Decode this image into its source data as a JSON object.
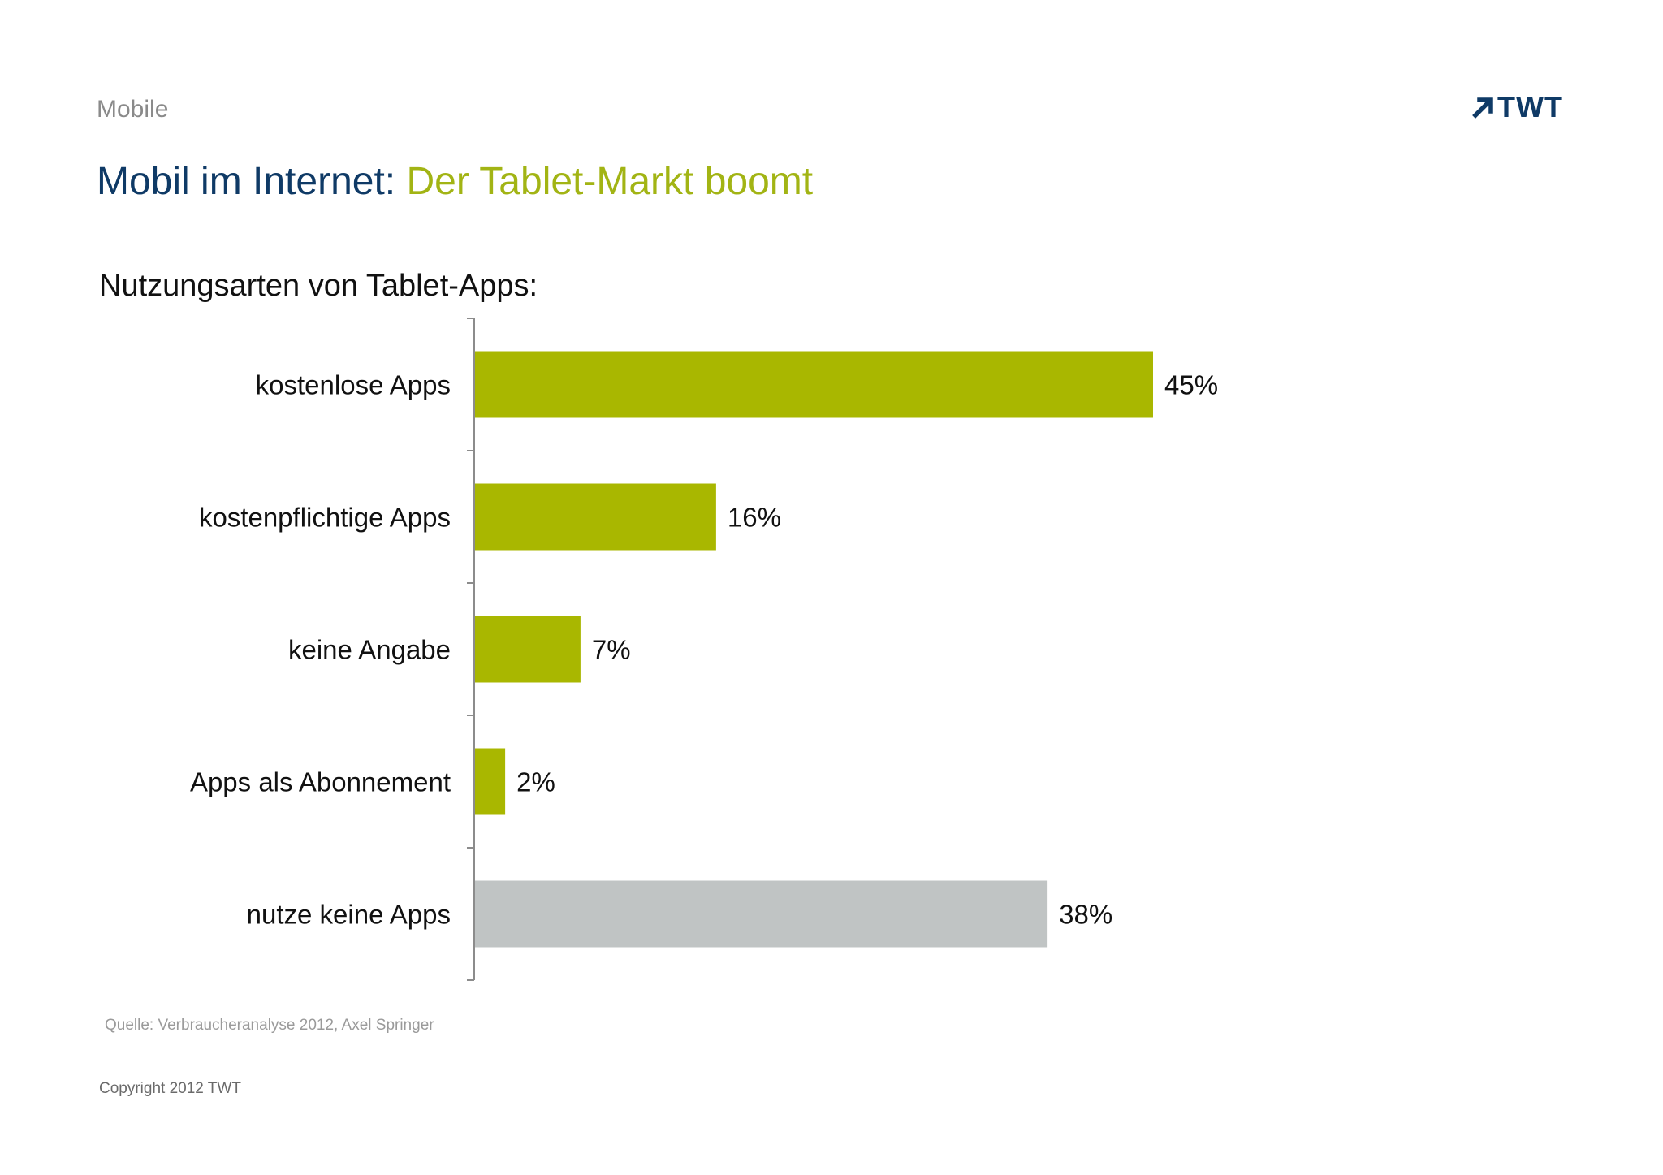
{
  "header": {
    "section_label": "Mobile",
    "logo_text": "TWT",
    "logo_icon": "arrow-up-right-icon",
    "title_main": "Mobil im Internet:",
    "title_accent": "Der Tablet-Markt boomt"
  },
  "colors": {
    "brand_blue": "#0f3a66",
    "accent_green": "#a9b700",
    "neutral_gray": "#c0c4c4"
  },
  "chart_data": {
    "type": "bar",
    "orientation": "horizontal",
    "title": "Nutzungsarten von Tablet-Apps:",
    "xlabel": "",
    "ylabel": "",
    "unit": "%",
    "categories": [
      "kostenlose Apps",
      "kostenpflichtige Apps",
      "keine Angabe",
      "Apps als Abonnement",
      "nutze keine Apps"
    ],
    "values": [
      45,
      16,
      7,
      2,
      38
    ],
    "value_labels": [
      "45%",
      "16%",
      "7%",
      "2%",
      "38%"
    ],
    "bar_colors": [
      "#a9b700",
      "#a9b700",
      "#a9b700",
      "#a9b700",
      "#c0c4c4"
    ],
    "grid": false,
    "legend": "none"
  },
  "footer": {
    "source": "Quelle: Verbraucheranalyse 2012,  Axel Springer",
    "copyright": "Copyright 2012 TWT"
  }
}
